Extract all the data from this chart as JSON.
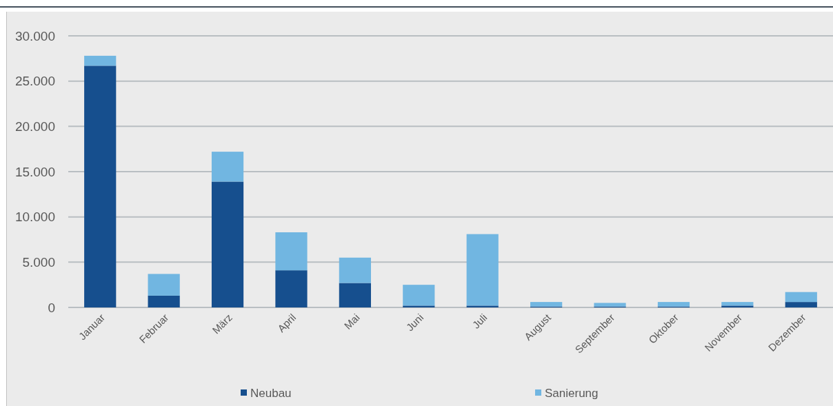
{
  "chart_data": {
    "type": "bar",
    "stacked": true,
    "categories": [
      "Januar",
      "Februar",
      "März",
      "April",
      "Mai",
      "Juni",
      "Juli",
      "August",
      "September",
      "Oktober",
      "November",
      "Dezember"
    ],
    "series": [
      {
        "name": "Neubau",
        "color": "#164f8e",
        "values": [
          26700,
          1300,
          13900,
          4100,
          2700,
          200,
          200,
          100,
          100,
          100,
          200,
          600
        ]
      },
      {
        "name": "Sanierung",
        "color": "#71b6e1",
        "values": [
          1100,
          2400,
          3300,
          4200,
          2800,
          2300,
          7900,
          500,
          400,
          500,
          400,
          1100
        ]
      }
    ],
    "ylim": [
      0,
      30000
    ],
    "yticks": [
      0,
      {
        "value": 5000,
        "label": "5.000"
      },
      {
        "value": 10000,
        "label": "10.000"
      },
      {
        "value": 15000,
        "label": "15.000"
      },
      {
        "value": 20000,
        "label": "20.000"
      },
      {
        "value": 25000,
        "label": "25.000"
      },
      {
        "value": 30000,
        "label": "30.000"
      }
    ],
    "grid": "y",
    "legend": "bottom"
  }
}
